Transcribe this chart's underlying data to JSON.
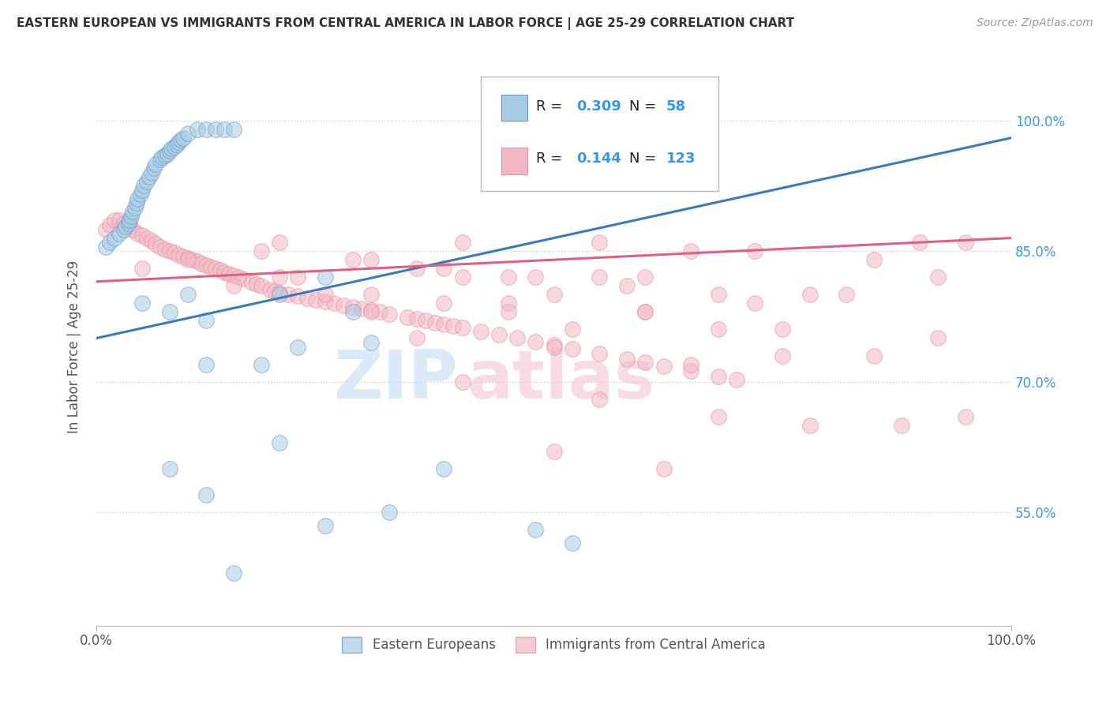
{
  "title": "EASTERN EUROPEAN VS IMMIGRANTS FROM CENTRAL AMERICA IN LABOR FORCE | AGE 25-29 CORRELATION CHART",
  "source": "Source: ZipAtlas.com",
  "ylabel": "In Labor Force | Age 25-29",
  "xlim": [
    0.0,
    1.0
  ],
  "ylim": [
    0.42,
    1.06
  ],
  "x_tick_labels": [
    "0.0%",
    "100.0%"
  ],
  "y_tick_labels": [
    "55.0%",
    "70.0%",
    "85.0%",
    "100.0%"
  ],
  "y_tick_values": [
    0.55,
    0.7,
    0.85,
    1.0
  ],
  "color_blue": "#a8cce4",
  "color_pink": "#f4b8c4",
  "color_blue_line": "#3a7abf",
  "color_pink_line": "#e06080",
  "background_color": "#ffffff",
  "grid_color": "#cccccc",
  "watermark_zip_color": "#c8dff5",
  "watermark_atlas_color": "#f5c8d5",
  "blue_x": [
    0.01,
    0.015,
    0.02,
    0.025,
    0.03,
    0.032,
    0.035,
    0.036,
    0.038,
    0.04,
    0.042,
    0.044,
    0.045,
    0.048,
    0.05,
    0.052,
    0.055,
    0.058,
    0.06,
    0.063,
    0.065,
    0.07,
    0.072,
    0.075,
    0.078,
    0.08,
    0.082,
    0.085,
    0.088,
    0.09,
    0.092,
    0.095,
    0.1,
    0.11,
    0.12,
    0.13,
    0.14,
    0.15,
    0.05,
    0.08,
    0.1,
    0.12,
    0.2,
    0.25,
    0.08,
    0.12,
    0.18,
    0.22,
    0.28,
    0.3,
    0.12,
    0.2,
    0.32,
    0.38,
    0.15,
    0.25,
    0.52,
    0.48
  ],
  "blue_y": [
    0.855,
    0.86,
    0.865,
    0.87,
    0.875,
    0.878,
    0.882,
    0.885,
    0.89,
    0.895,
    0.9,
    0.905,
    0.91,
    0.915,
    0.92,
    0.925,
    0.93,
    0.935,
    0.94,
    0.945,
    0.95,
    0.955,
    0.958,
    0.96,
    0.962,
    0.965,
    0.968,
    0.97,
    0.972,
    0.975,
    0.978,
    0.98,
    0.985,
    0.99,
    0.99,
    0.99,
    0.99,
    0.99,
    0.79,
    0.78,
    0.8,
    0.77,
    0.8,
    0.82,
    0.6,
    0.72,
    0.72,
    0.74,
    0.78,
    0.745,
    0.57,
    0.63,
    0.55,
    0.6,
    0.48,
    0.535,
    0.515,
    0.53
  ],
  "pink_x": [
    0.01,
    0.015,
    0.02,
    0.025,
    0.03,
    0.035,
    0.04,
    0.045,
    0.05,
    0.055,
    0.06,
    0.065,
    0.07,
    0.075,
    0.08,
    0.085,
    0.09,
    0.095,
    0.1,
    0.105,
    0.11,
    0.115,
    0.12,
    0.125,
    0.13,
    0.135,
    0.14,
    0.145,
    0.15,
    0.155,
    0.16,
    0.17,
    0.175,
    0.18,
    0.19,
    0.195,
    0.2,
    0.21,
    0.22,
    0.23,
    0.24,
    0.25,
    0.26,
    0.27,
    0.28,
    0.29,
    0.3,
    0.31,
    0.32,
    0.34,
    0.35,
    0.36,
    0.37,
    0.38,
    0.39,
    0.4,
    0.42,
    0.44,
    0.46,
    0.48,
    0.5,
    0.52,
    0.55,
    0.58,
    0.6,
    0.62,
    0.65,
    0.68,
    0.7,
    0.05,
    0.1,
    0.15,
    0.2,
    0.25,
    0.3,
    0.38,
    0.45,
    0.52,
    0.6,
    0.68,
    0.75,
    0.3,
    0.4,
    0.5,
    0.6,
    0.2,
    0.4,
    0.55,
    0.65,
    0.72,
    0.22,
    0.35,
    0.45,
    0.55,
    0.18,
    0.28,
    0.38,
    0.48,
    0.58,
    0.68,
    0.78,
    0.85,
    0.9,
    0.95,
    0.3,
    0.45,
    0.6,
    0.72,
    0.82,
    0.92,
    0.35,
    0.5,
    0.65,
    0.75,
    0.85,
    0.92,
    0.4,
    0.55,
    0.68,
    0.78,
    0.88,
    0.95,
    0.5,
    0.62
  ],
  "pink_y": [
    0.875,
    0.88,
    0.885,
    0.885,
    0.882,
    0.878,
    0.875,
    0.87,
    0.868,
    0.865,
    0.862,
    0.858,
    0.855,
    0.852,
    0.85,
    0.848,
    0.846,
    0.844,
    0.842,
    0.84,
    0.838,
    0.836,
    0.834,
    0.832,
    0.83,
    0.828,
    0.826,
    0.824,
    0.822,
    0.82,
    0.818,
    0.814,
    0.812,
    0.81,
    0.806,
    0.804,
    0.802,
    0.8,
    0.798,
    0.796,
    0.794,
    0.792,
    0.79,
    0.788,
    0.786,
    0.784,
    0.782,
    0.78,
    0.778,
    0.774,
    0.772,
    0.77,
    0.768,
    0.766,
    0.764,
    0.762,
    0.758,
    0.754,
    0.75,
    0.746,
    0.742,
    0.738,
    0.732,
    0.726,
    0.722,
    0.718,
    0.712,
    0.706,
    0.702,
    0.83,
    0.84,
    0.81,
    0.82,
    0.8,
    0.8,
    0.79,
    0.79,
    0.76,
    0.78,
    0.76,
    0.76,
    0.84,
    0.82,
    0.8,
    0.82,
    0.86,
    0.86,
    0.86,
    0.85,
    0.85,
    0.82,
    0.83,
    0.82,
    0.82,
    0.85,
    0.84,
    0.83,
    0.82,
    0.81,
    0.8,
    0.8,
    0.84,
    0.86,
    0.86,
    0.78,
    0.78,
    0.78,
    0.79,
    0.8,
    0.82,
    0.75,
    0.74,
    0.72,
    0.73,
    0.73,
    0.75,
    0.7,
    0.68,
    0.66,
    0.65,
    0.65,
    0.66,
    0.62,
    0.6
  ],
  "blue_line_x": [
    0.0,
    1.0
  ],
  "blue_line_y": [
    0.75,
    0.98
  ],
  "pink_line_x": [
    0.0,
    1.0
  ],
  "pink_line_y": [
    0.815,
    0.865
  ]
}
